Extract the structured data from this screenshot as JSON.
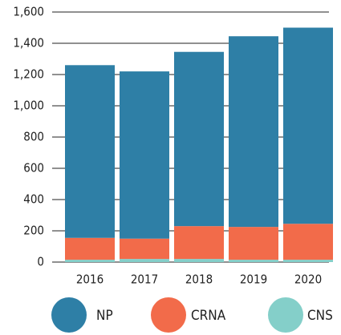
{
  "chart_data": {
    "type": "stacked_bar",
    "categories": [
      "2016",
      "2017",
      "2018",
      "2019",
      "2020"
    ],
    "series": [
      {
        "name": "CNS",
        "color": "#84cfc9",
        "values": [
          15,
          20,
          20,
          15,
          15
        ]
      },
      {
        "name": "CRNA",
        "color": "#f26b4a",
        "values": [
          140,
          130,
          210,
          210,
          230
        ]
      },
      {
        "name": "NP",
        "color": "#2e7fa6",
        "values": [
          1105,
          1070,
          1115,
          1220,
          1255
        ]
      }
    ],
    "ylim": [
      0,
      1600
    ],
    "yticks": [
      0,
      200,
      400,
      600,
      800,
      {
        "value": 1000,
        "label": "1,000"
      },
      {
        "value": 1200,
        "label": "1,200"
      },
      {
        "value": 1400,
        "label": "1,400"
      },
      {
        "value": 1600,
        "label": "1,600"
      }
    ],
    "grid": true,
    "legend": "bottom",
    "legend_order": [
      "NP",
      "CRNA",
      "CNS"
    ]
  }
}
